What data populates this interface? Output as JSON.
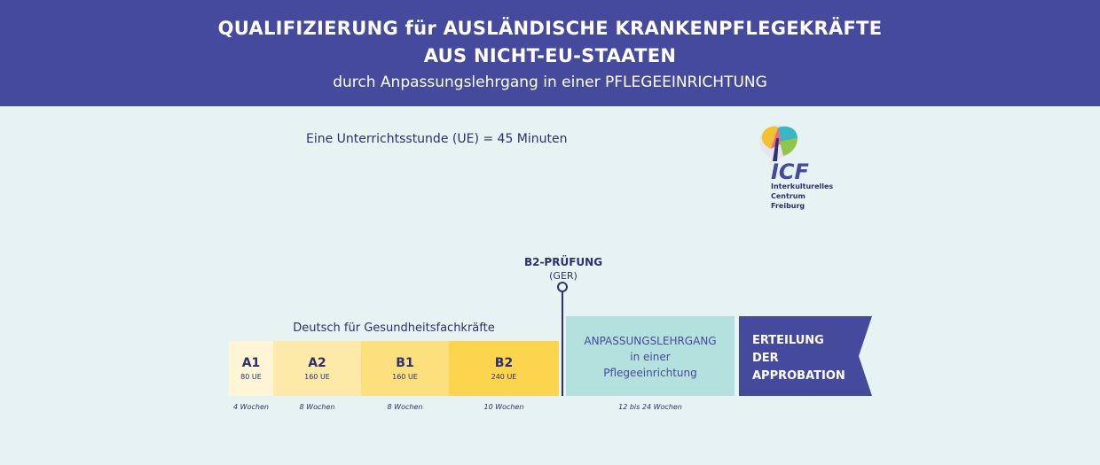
{
  "header": {
    "line1": "QUALIFIZIERUNG für AUSLÄNDISCHE KRANKENPFLEGEKRÄFTE",
    "line2": "AUS NICHT-EU-STAATEN",
    "subtitle": "durch Anpassungslehrgang in einer PFLEGEEINRICHTUNG"
  },
  "ue_note": "Eine Unterrichtsstunde (UE) = 45 Minuten",
  "logo": {
    "letters": "ICF",
    "line1": "Interkulturelles",
    "line2": "Centrum",
    "line3": "Freiburg"
  },
  "milestone": {
    "title": "B2-PRÜFUNG",
    "subtitle": "(GER)"
  },
  "course_label": "Deutsch für Gesundheitsfachkräfte",
  "levels": [
    {
      "name": "A1",
      "ue": "80 UE",
      "weeks": "4 Wochen"
    },
    {
      "name": "A2",
      "ue": "160 UE",
      "weeks": "8 Wochen"
    },
    {
      "name": "B1",
      "ue": "160 UE",
      "weeks": "8 Wochen"
    },
    {
      "name": "B2",
      "ue": "240 UE",
      "weeks": "10 Wochen"
    }
  ],
  "adaptation": {
    "line1": "ANPASSUNGSLEHRGANG",
    "line2": "in einer",
    "line3": "Pflegeeinrichtung",
    "weeks": "12 bis 24 Wochen"
  },
  "final": {
    "line1": "ERTEILUNG",
    "line2": "DER",
    "line3": "APPROBATION"
  },
  "colors": {
    "header": "#464a9c",
    "background": "#e6f3f2",
    "a1": "#fef5d6",
    "a2": "#fdeaa9",
    "b1": "#fde07e",
    "b2": "#fdd44d",
    "adaptation": "#b4e1dd",
    "final": "#464a9c"
  }
}
